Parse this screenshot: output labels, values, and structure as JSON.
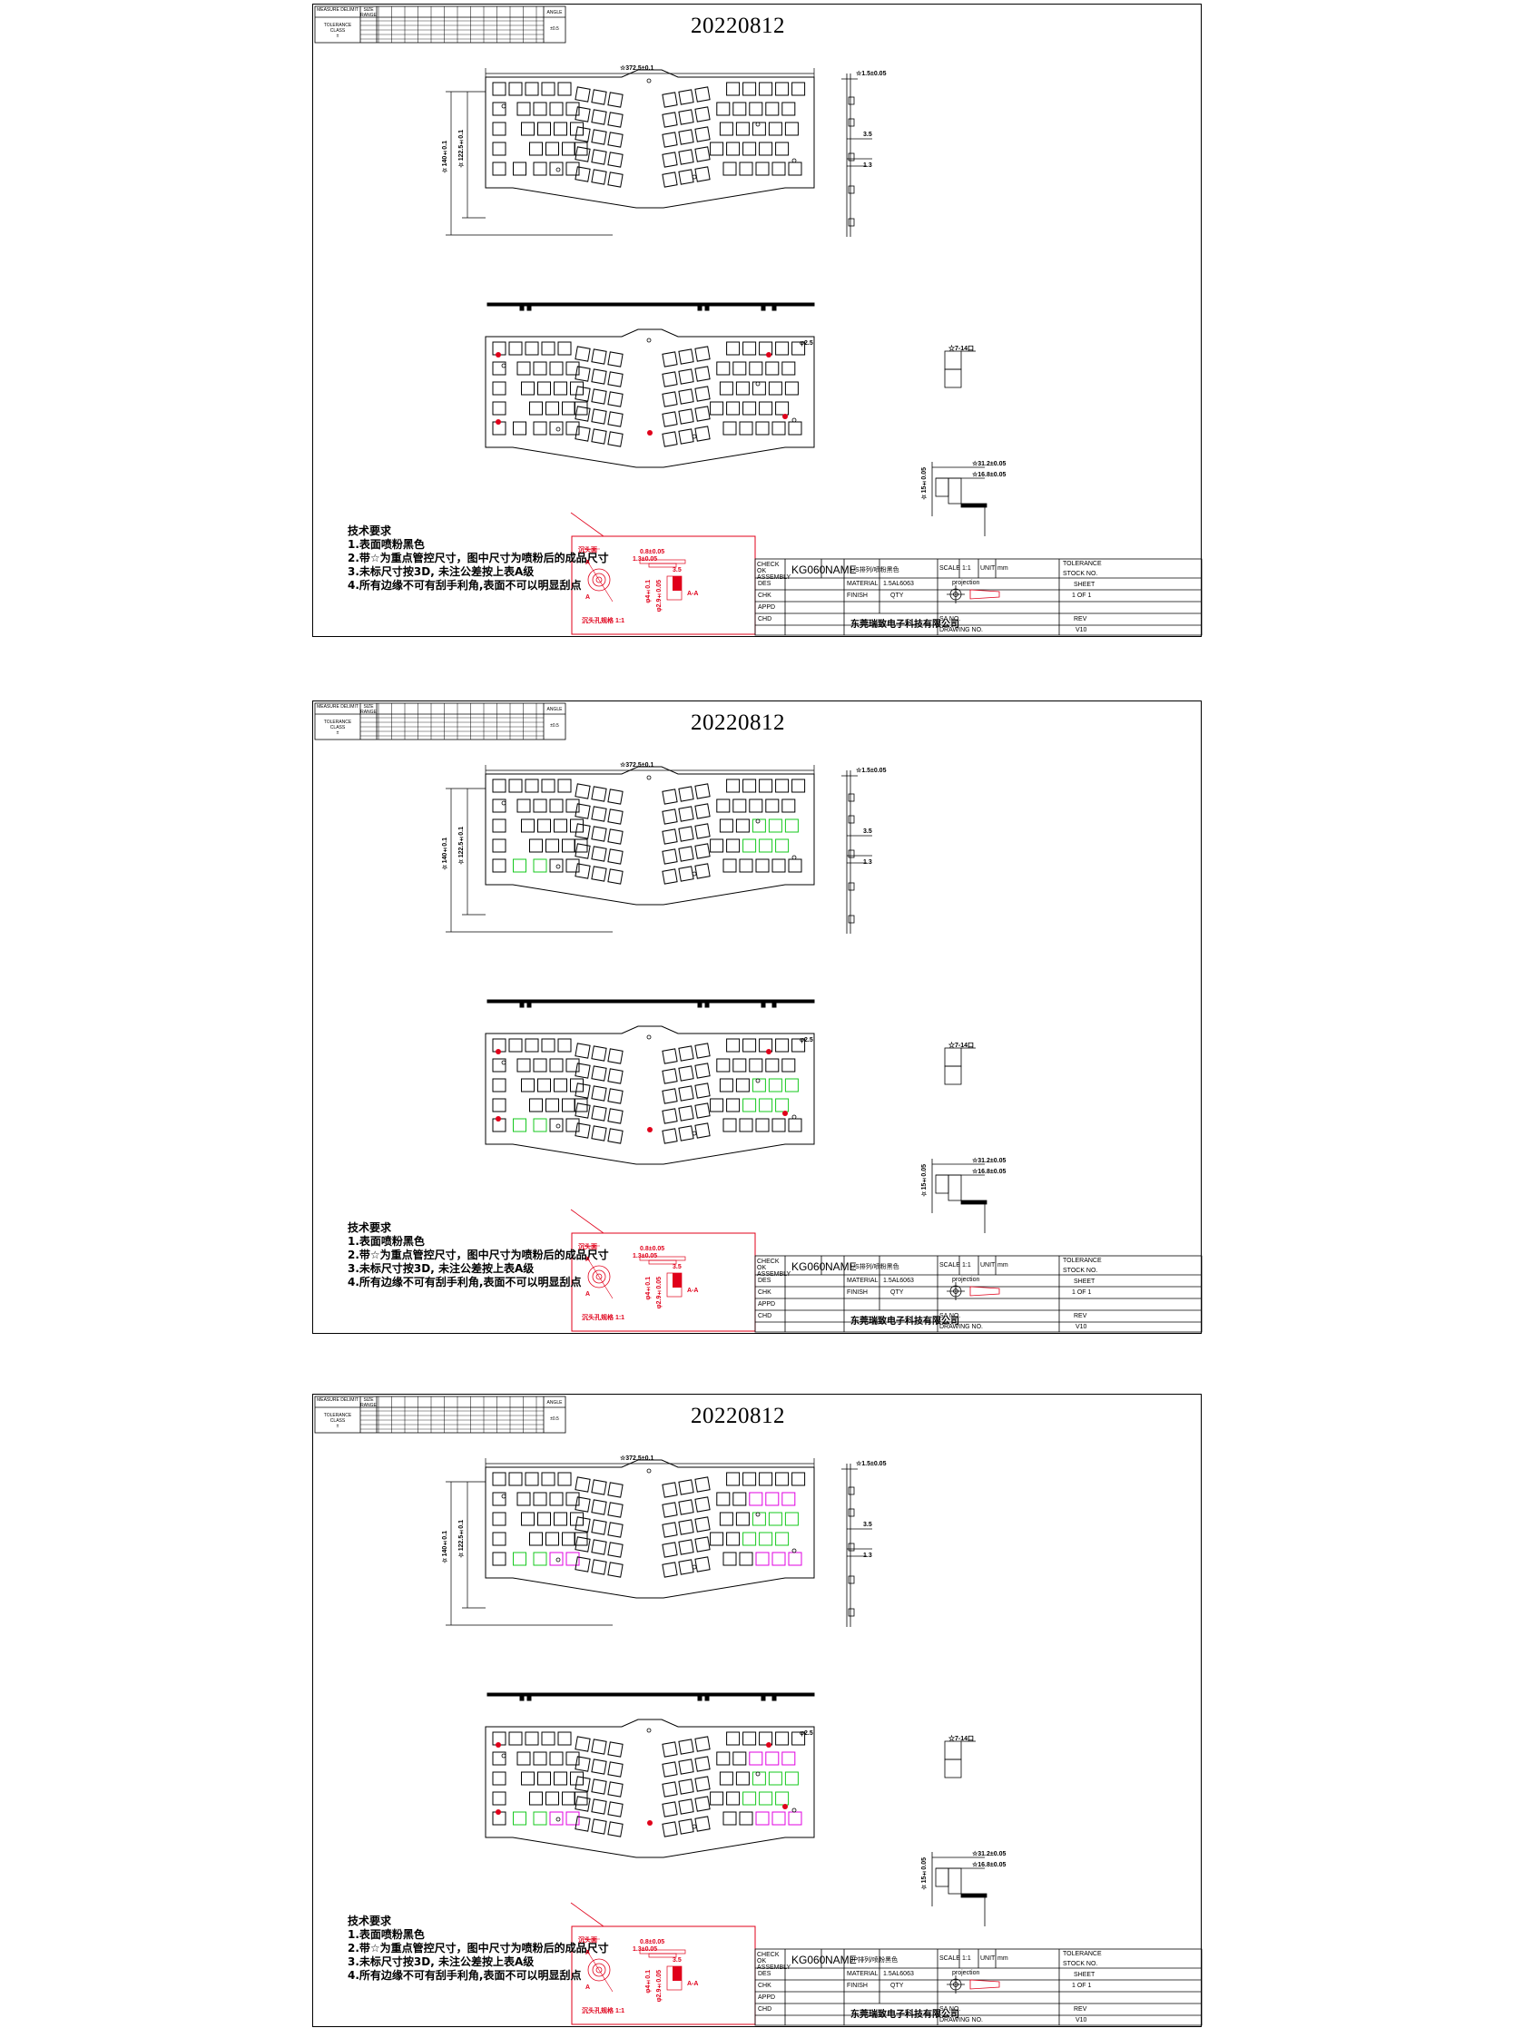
{
  "sheets": [
    {
      "date_label": "20220812",
      "variant": "plain",
      "name_field": "US排列/喷粉黑色"
    },
    {
      "date_label": "20220812",
      "variant": "green",
      "name_field": "US排列/喷粉黑色"
    },
    {
      "date_label": "20220812",
      "variant": "green-magenta",
      "name_field": "JP排列/喷粉黑色"
    }
  ],
  "common": {
    "dimensions": {
      "overall_width": "☆372.5±0.1",
      "overall_height": "☆140±0.1",
      "inner_height": "☆122.5±0.1",
      "plate_thickness": "☆1.5±0.05",
      "offset_a": "3.5",
      "offset_b": "1.3",
      "hole": "φ2.5",
      "switch_cutout": "☆7-14口",
      "dim_312": "☆31.2±0.05",
      "dim_168": "☆16.8±0.05",
      "dim_vert": "☆15±0.05"
    },
    "tolerance_table": {
      "header_row1": "MEASURE DELIMIT",
      "header_row2": "SIZE RANGE",
      "tolerance_class": "TOLERANCE CLASS",
      "class_value": "±",
      "angle_label": "ANGLE",
      "angle_value": "±0.5",
      "classes": [
        "A",
        "B",
        "C",
        "D",
        "E"
      ]
    },
    "notes": {
      "title": "技术要求",
      "items": [
        "1.表面喷粉黑色",
        "2.带☆为重点管控尺寸，图中尺寸为喷粉后的成品尺寸",
        "3.未标尺寸按3D, 未注公差按上表A级",
        "4.所有边缘不可有刮手利角,表面不可以明显刮点"
      ]
    },
    "detail": {
      "label_a": "A",
      "label_b": "沉头面",
      "dim1": "0.8±0.05",
      "dim2": "1.3±0.05",
      "dim3": "φ4±0.1",
      "dim4": "φ2.9±0.05",
      "dim5": "3.5",
      "section": "A-A",
      "caption": "沉头孔规格 1:1"
    },
    "title_block": {
      "checked": "CHECK OK ASSEMBLY",
      "part_no": "KG060",
      "name_label": "NAME",
      "scale_label": "SCALE",
      "scale_value": "1:1",
      "unit_label": "UNIT",
      "unit_value": "mm",
      "tolerance": "TOLERANCE",
      "stock": "STOCK NO.",
      "material_label": "MATERIAL",
      "material_value": "1.5AL6063",
      "finish_label": "FINISH",
      "qty_label": "QTY",
      "sheet_label": "SHEET",
      "sheet_value": "1 OF 1",
      "rows": [
        "DES",
        "CHK",
        "APPD",
        "CHD"
      ],
      "company": "东莞瑞致电子科技有限公司",
      "projection": "projection",
      "sa_label": "SA NO.",
      "drawing_label": "DRAWING NO.",
      "rev_label": "REV",
      "rev_value": "V10"
    }
  }
}
